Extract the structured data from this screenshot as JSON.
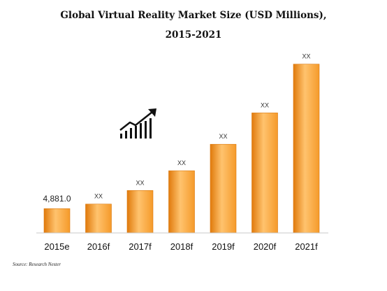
{
  "chart_data": {
    "type": "bar",
    "title_line1": "Global Virtual Reality Market Size (USD Millions),",
    "title_line2": "2015-2021",
    "categories": [
      "2015e",
      "2016f",
      "2017f",
      "2018f",
      "2019f",
      "2020f",
      "2021f"
    ],
    "values": [
      4881.0,
      5790,
      8520,
      12480,
      17790,
      24080,
      33860
    ],
    "data_labels": [
      "4,881.0",
      "XX",
      "XX",
      "XX",
      "XX",
      "XX",
      "XX"
    ],
    "xlabel": "",
    "ylabel": "",
    "ylim": [
      0,
      35500
    ],
    "grid": false,
    "bar_color": "#f59a2a",
    "bar_color_light": "#ffc36e",
    "bar_color_dark": "#e07a0c"
  },
  "source": "Source: Research Nester",
  "icon": "trending-up-chart-icon"
}
